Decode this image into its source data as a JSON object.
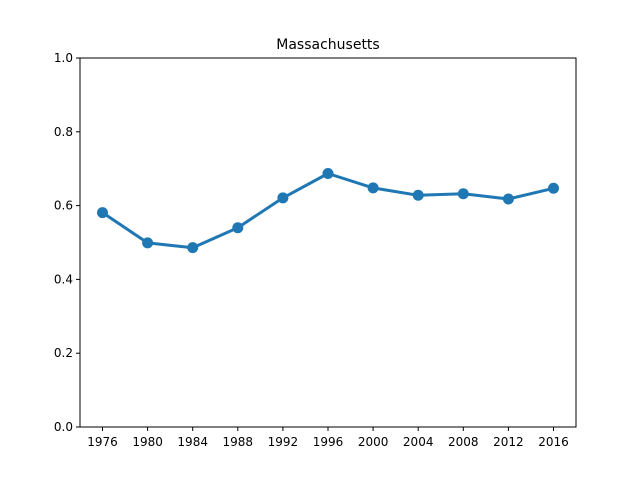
{
  "chart_data": {
    "type": "line",
    "title": "Massachusetts",
    "xlabel": "",
    "ylabel": "",
    "categories": [
      "1976",
      "1980",
      "1984",
      "1988",
      "1992",
      "1996",
      "2000",
      "2004",
      "2008",
      "2012",
      "2016"
    ],
    "series": [
      {
        "values": [
          0.581,
          0.499,
          0.486,
          0.54,
          0.621,
          0.687,
          0.648,
          0.628,
          0.632,
          0.618,
          0.647
        ]
      }
    ],
    "ylim": [
      0.0,
      1.0
    ],
    "yticks": [
      "0.0",
      "0.2",
      "0.4",
      "0.6",
      "0.8",
      "1.0"
    ],
    "grid": false,
    "legend": "none",
    "colors": {
      "line": "#1f77b4",
      "axis": "#000000"
    }
  }
}
